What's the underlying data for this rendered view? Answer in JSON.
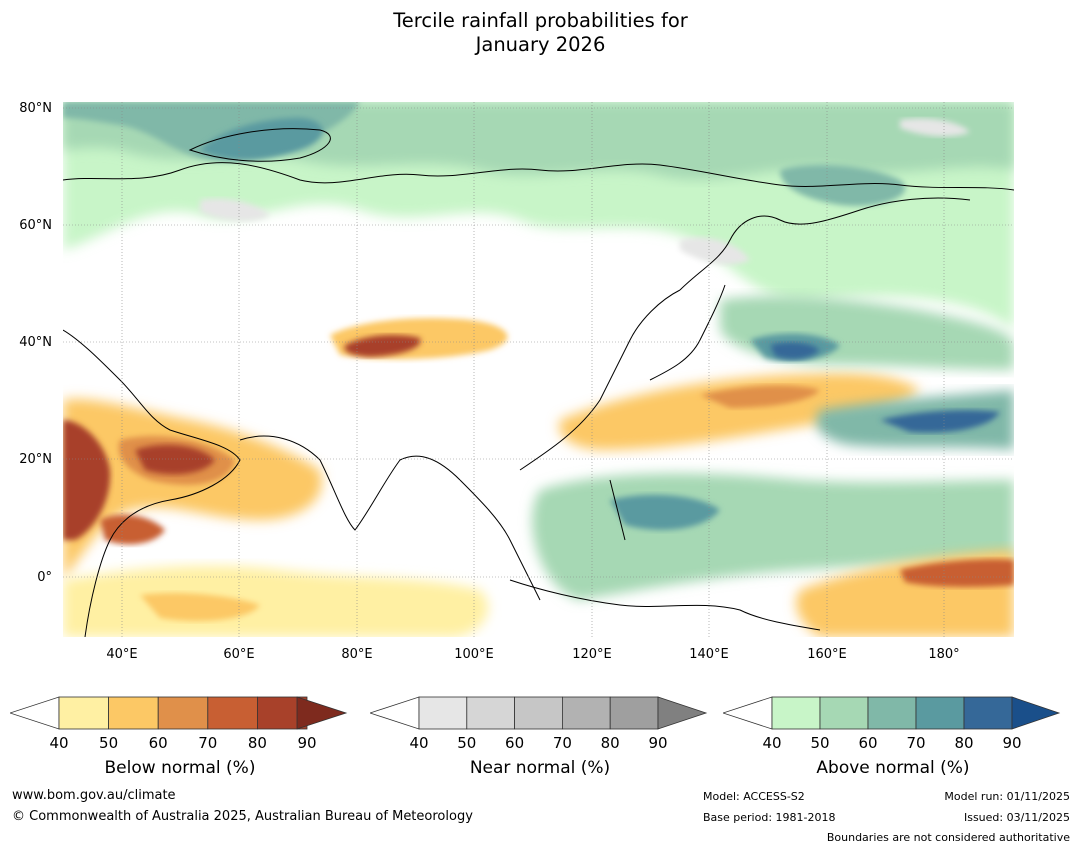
{
  "title_line1": "Tercile rainfall probabilities for",
  "title_line2": "January 2026",
  "map": {
    "lat_ticks": [
      "80°N",
      "60°N",
      "40°N",
      "20°N",
      "0°"
    ],
    "lon_ticks": [
      "40°E",
      "60°E",
      "80°E",
      "100°E",
      "120°E",
      "140°E",
      "160°E",
      "180°"
    ]
  },
  "colorbars": [
    {
      "label": "Below normal (%)",
      "ticks": [
        "40",
        "50",
        "60",
        "70",
        "80",
        "90"
      ],
      "colors": [
        "#fff0a3",
        "#fcc865",
        "#e0904a",
        "#c85f33",
        "#a8412a",
        "#7e2a1e"
      ]
    },
    {
      "label": "Near normal (%)",
      "ticks": [
        "40",
        "50",
        "60",
        "70",
        "80",
        "90"
      ],
      "colors": [
        "#e6e6e6",
        "#d6d6d6",
        "#c6c6c6",
        "#b2b2b2",
        "#9f9f9f",
        "#808080"
      ]
    },
    {
      "label": "Above normal (%)",
      "ticks": [
        "40",
        "50",
        "60",
        "70",
        "80",
        "90"
      ],
      "colors": [
        "#c8f5c8",
        "#a6d8b4",
        "#80b8a8",
        "#5a9aa0",
        "#356898",
        "#1a4f8a"
      ]
    }
  ],
  "footer": {
    "url": "www.bom.gov.au/climate",
    "copyright": "© Commonwealth of Australia 2025, Australian Bureau of Meteorology",
    "model": "Model: ACCESS-S2",
    "base_period": "Base period: 1981-2018",
    "model_run": "Model run: 01/11/2025",
    "issued": "Issued: 03/11/2025",
    "boundaries_note": "Boundaries are not considered authoritative"
  }
}
